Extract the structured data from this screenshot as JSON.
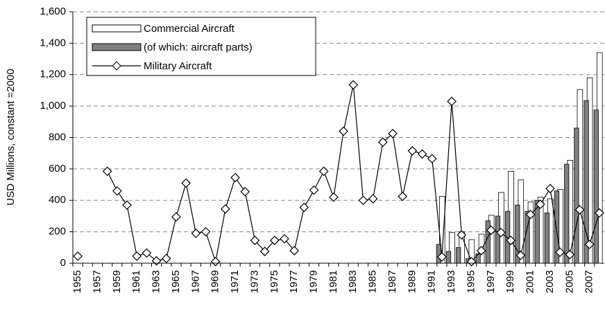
{
  "chart_data": {
    "type": "bar_line",
    "y_label": "USD Millions, constant =2000",
    "categories": [
      "1955",
      null,
      "1957",
      null,
      "1959",
      null,
      "1961",
      null,
      "1963",
      null,
      "1965",
      null,
      "1967",
      null,
      "1969",
      null,
      "1971",
      null,
      "1973",
      null,
      "1975",
      null,
      "1977",
      null,
      "1979",
      null,
      "1981",
      null,
      "1983",
      null,
      "1985",
      null,
      "1987",
      null,
      "1989",
      null,
      "1991",
      null,
      "1993",
      null,
      "1995",
      null,
      "1997",
      null,
      "1999",
      null,
      "2001",
      null,
      "2003",
      null,
      "2005",
      null,
      "2007",
      null
    ],
    "series": [
      {
        "name": "Commercial Aircraft",
        "kind": "bar",
        "color": "#ffffff",
        "values": [
          null,
          null,
          null,
          null,
          null,
          null,
          null,
          null,
          null,
          null,
          null,
          null,
          null,
          null,
          null,
          null,
          null,
          null,
          null,
          null,
          null,
          null,
          null,
          null,
          null,
          null,
          null,
          null,
          null,
          null,
          null,
          null,
          null,
          null,
          null,
          null,
          null,
          425,
          195,
          200,
          150,
          185,
          305,
          450,
          585,
          530,
          390,
          420,
          410,
          470,
          655,
          1105,
          1180,
          1340
        ]
      },
      {
        "name": "(of which: aircraft parts)",
        "kind": "bar",
        "color": "#808080",
        "values": [
          null,
          null,
          null,
          null,
          null,
          null,
          null,
          null,
          null,
          null,
          null,
          null,
          null,
          null,
          null,
          null,
          null,
          null,
          null,
          null,
          null,
          null,
          null,
          null,
          null,
          null,
          null,
          null,
          null,
          null,
          null,
          null,
          null,
          null,
          null,
          null,
          null,
          120,
          75,
          100,
          30,
          60,
          270,
          300,
          330,
          370,
          330,
          400,
          320,
          460,
          630,
          860,
          1035,
          975
        ]
      },
      {
        "name": "Military Aircraft",
        "kind": "line",
        "color": "#000000",
        "values": [
          45,
          null,
          null,
          585,
          460,
          370,
          45,
          65,
          15,
          30,
          295,
          510,
          190,
          200,
          10,
          345,
          545,
          455,
          145,
          75,
          145,
          155,
          80,
          355,
          465,
          585,
          420,
          840,
          1135,
          400,
          410,
          770,
          825,
          425,
          715,
          695,
          665,
          40,
          1030,
          180,
          10,
          80,
          210,
          195,
          145,
          50,
          310,
          375,
          475,
          70,
          55,
          340,
          120,
          320
        ]
      }
    ],
    "ylim": [
      0,
      1600
    ],
    "yticks": [
      0,
      200,
      400,
      600,
      800,
      {
        "value": 1000,
        "label": "1,000"
      },
      {
        "value": 1200,
        "label": "1,200"
      },
      {
        "value": 1400,
        "label": "1,400"
      },
      {
        "value": 1600,
        "label": "1,600"
      }
    ],
    "grid": true,
    "legend": "upper left"
  }
}
